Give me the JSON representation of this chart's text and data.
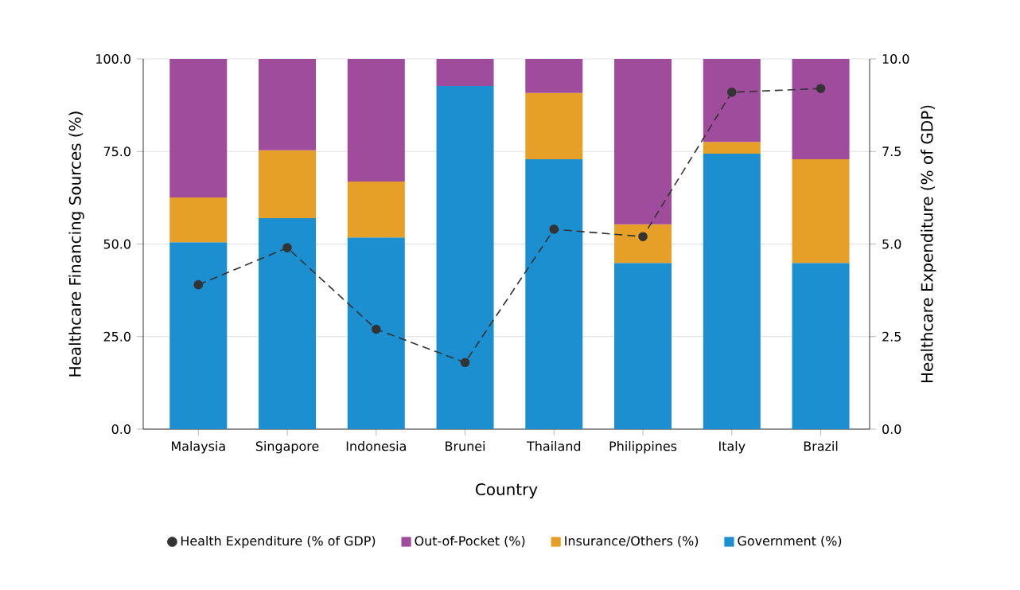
{
  "chart_data": {
    "type": "bar",
    "stacked": true,
    "xlabel": "Country",
    "ylabel": "Healthcare Financing Sources (%)",
    "y2label": "Healthcare Expenditure (% of GDP)",
    "categories": [
      "Malaysia",
      "Singapore",
      "Indonesia",
      "Brunei",
      "Thailand",
      "Philippines",
      "Italy",
      "Brazil"
    ],
    "series": [
      {
        "name": "Government (%)",
        "color": "#1c8fd0",
        "values": [
          50.5,
          57.0,
          51.8,
          92.7,
          72.9,
          44.9,
          74.4,
          44.9
        ]
      },
      {
        "name": "Insurance/Others (%)",
        "color": "#e69f27",
        "values": [
          12.1,
          18.3,
          15.1,
          0,
          17.9,
          10.4,
          3.2,
          28.0
        ]
      },
      {
        "name": "Out-of-Pocket (%)",
        "color": "#a04c9c",
        "values": [
          37.4,
          24.7,
          33.1,
          7.3,
          9.2,
          44.7,
          22.4,
          27.1
        ]
      },
      {
        "name": "Health Expenditure (% of GDP)",
        "type": "line",
        "axis": "y2",
        "color": "#333333",
        "marker": "circle",
        "line_style": "dashed",
        "values": [
          3.9,
          4.9,
          2.7,
          1.8,
          5.4,
          5.2,
          9.1,
          9.2
        ]
      }
    ],
    "ylim": [
      0,
      100
    ],
    "yticks": [
      {
        "value": 0,
        "label": "0.0"
      },
      {
        "value": 25,
        "label": "25.0"
      },
      {
        "value": 50,
        "label": "50.0"
      },
      {
        "value": 75,
        "label": "75.0"
      },
      {
        "value": 100,
        "label": "100.0"
      }
    ],
    "y2lim": [
      0,
      10
    ],
    "y2ticks": [
      {
        "value": 0,
        "label": "0.0"
      },
      {
        "value": 2.5,
        "label": "2.5"
      },
      {
        "value": 5,
        "label": "5.0"
      },
      {
        "value": 7.5,
        "label": "7.5"
      },
      {
        "value": 10,
        "label": "10.0"
      }
    ],
    "grid": "y",
    "legend": "bottom"
  }
}
